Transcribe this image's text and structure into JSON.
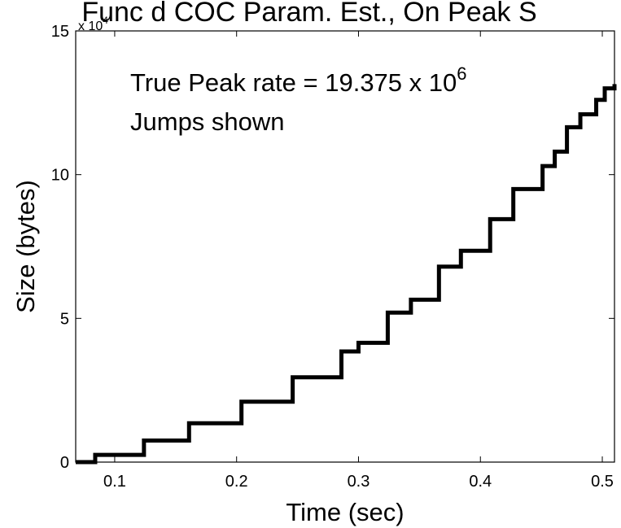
{
  "chart_data": {
    "type": "line",
    "title": "Func d COC Param. Est., On Peak S",
    "xlabel": "Time (sec)",
    "ylabel": "Size (bytes)",
    "y_exponent_label": "x 10",
    "y_exponent_power": "4",
    "xlim": [
      0.068,
      0.51
    ],
    "ylim": [
      0,
      15
    ],
    "xticks": [
      0.1,
      0.2,
      0.3,
      0.4,
      0.5
    ],
    "xtick_labels": [
      "0.1",
      "0.2",
      "0.3",
      "0.4",
      "0.5"
    ],
    "yticks": [
      0,
      5,
      10,
      15
    ],
    "ytick_labels": [
      "0",
      "5",
      "10",
      "15"
    ],
    "grid": false,
    "annotation_line1": "True Peak rate = 19.375 x 10",
    "annotation_line1_power": "6",
    "annotation_line2": "Jumps shown",
    "series": [
      {
        "color": "#000000",
        "step": true,
        "x": [
          0.068,
          0.084,
          0.124,
          0.161,
          0.204,
          0.246,
          0.286,
          0.3,
          0.324,
          0.343,
          0.366,
          0.384,
          0.408,
          0.427,
          0.451,
          0.461,
          0.471,
          0.482,
          0.495,
          0.502,
          0.51
        ],
        "y": [
          0,
          0.25,
          0.75,
          1.35,
          2.1,
          2.95,
          3.85,
          4.15,
          5.2,
          5.65,
          6.8,
          7.35,
          8.45,
          9.5,
          10.3,
          10.8,
          11.65,
          12.1,
          12.6,
          13.0,
          13.15
        ]
      }
    ]
  }
}
